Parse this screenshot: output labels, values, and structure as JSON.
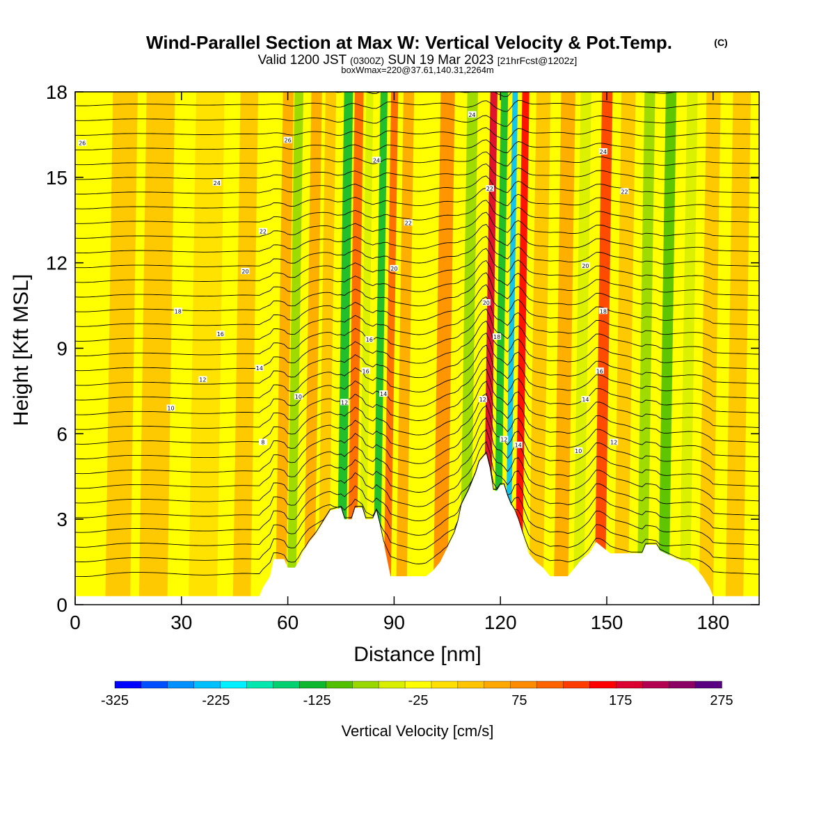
{
  "chart_data": {
    "type": "heatmap",
    "title": "Wind-Parallel Section at Max W: Vertical Velocity & Pot.Temp.",
    "title_mark": "(C)",
    "subtitle": {
      "prefix": "Valid 1200 JST",
      "utc": "(0300Z)",
      "date": "SUN 19 Mar 2023",
      "forecast": "[21hrFcst@1202z]"
    },
    "subtitle2": "boxWmax=220@37.61,140.31,2264m",
    "xlabel": "Distance [nm]",
    "ylabel": "Height [Kft MSL]",
    "xlim": [
      0,
      193
    ],
    "ylim": [
      0,
      18
    ],
    "x_ticks": [
      "0",
      "30",
      "60",
      "90",
      "120",
      "150",
      "180"
    ],
    "x_tick_values": [
      0,
      30,
      60,
      90,
      120,
      150,
      180
    ],
    "y_ticks": [
      "0",
      "3",
      "6",
      "9",
      "12",
      "15",
      "18"
    ],
    "y_tick_values": [
      0,
      3,
      6,
      9,
      12,
      15,
      18
    ],
    "colorbar": {
      "label": "Vertical Velocity [cm/s]",
      "labels": [
        "-325",
        "-225",
        "-125",
        "-25",
        "75",
        "175",
        "275"
      ],
      "label_values": [
        -325,
        -225,
        -125,
        -25,
        75,
        175,
        275
      ],
      "range": [
        -325,
        275
      ],
      "colors": [
        "#0000ff",
        "#0050ff",
        "#0090ff",
        "#00c0ff",
        "#00f0ff",
        "#00e8b0",
        "#00d070",
        "#10b830",
        "#50c000",
        "#98d800",
        "#d8f000",
        "#ffff00",
        "#ffe000",
        "#ffc400",
        "#ffa800",
        "#ff8c00",
        "#ff6400",
        "#ff3c00",
        "#ff0000",
        "#dc0030",
        "#b40050",
        "#8c0064",
        "#5a0082"
      ]
    },
    "terrain_kft": [
      [
        0,
        0.3
      ],
      [
        52,
        0.3
      ],
      [
        53,
        0.6
      ],
      [
        55,
        1.0
      ],
      [
        56,
        1.6
      ],
      [
        59,
        1.6
      ],
      [
        60,
        1.3
      ],
      [
        62,
        1.3
      ],
      [
        63,
        1.5
      ],
      [
        64,
        1.8
      ],
      [
        66,
        2.2
      ],
      [
        68,
        2.5
      ],
      [
        70,
        2.9
      ],
      [
        72,
        3.3
      ],
      [
        75,
        3.4
      ],
      [
        76,
        3.0
      ],
      [
        78,
        3.0
      ],
      [
        79,
        3.4
      ],
      [
        81,
        3.4
      ],
      [
        82,
        3.0
      ],
      [
        84,
        3.0
      ],
      [
        85,
        3.3
      ],
      [
        86,
        2.8
      ],
      [
        87,
        2.2
      ],
      [
        88,
        1.6
      ],
      [
        89,
        1.0
      ],
      [
        99,
        1.0
      ],
      [
        101,
        1.2
      ],
      [
        103,
        1.5
      ],
      [
        105,
        2.0
      ],
      [
        107,
        2.5
      ],
      [
        108,
        2.9
      ],
      [
        109,
        3.5
      ],
      [
        111,
        4.0
      ],
      [
        113,
        4.6
      ],
      [
        114,
        5.0
      ],
      [
        116,
        5.3
      ],
      [
        117,
        4.8
      ],
      [
        118,
        4.0
      ],
      [
        119,
        4.0
      ],
      [
        120,
        4.2
      ],
      [
        121,
        4.2
      ],
      [
        122,
        3.8
      ],
      [
        123,
        3.5
      ],
      [
        124,
        3.3
      ],
      [
        125,
        3.0
      ],
      [
        126,
        2.6
      ],
      [
        127,
        2.2
      ],
      [
        128,
        1.8
      ],
      [
        130,
        1.5
      ],
      [
        132,
        1.3
      ],
      [
        134,
        1.0
      ],
      [
        139,
        1.0
      ],
      [
        141,
        1.3
      ],
      [
        143,
        1.6
      ],
      [
        145,
        1.8
      ],
      [
        147,
        2.2
      ],
      [
        149,
        2.0
      ],
      [
        151,
        1.8
      ],
      [
        160,
        1.8
      ],
      [
        161,
        2.1
      ],
      [
        164,
        2.1
      ],
      [
        165,
        1.9
      ],
      [
        170,
        1.6
      ],
      [
        173,
        1.5
      ],
      [
        175,
        1.3
      ],
      [
        177,
        1.0
      ],
      [
        179,
        0.6
      ],
      [
        180,
        0.3
      ],
      [
        193,
        0.3
      ]
    ],
    "w_bands": [
      {
        "x": 3,
        "w": -35,
        "width": 6
      },
      {
        "x": 12,
        "w": 20,
        "width": 7
      },
      {
        "x": 22,
        "w": 25,
        "width": 8
      },
      {
        "x": 36,
        "w": -10,
        "width": 8
      },
      {
        "x": 47,
        "w": 20,
        "width": 5
      },
      {
        "x": 58,
        "w": 50,
        "width": 3
      },
      {
        "x": 61,
        "w": -70,
        "width": 2.5
      },
      {
        "x": 66,
        "w": 55,
        "width": 3
      },
      {
        "x": 70,
        "w": 30,
        "width": 3
      },
      {
        "x": 75,
        "w": -120,
        "width": 2.5
      },
      {
        "x": 78,
        "w": 110,
        "width": 2.5
      },
      {
        "x": 81,
        "w": -60,
        "width": 2
      },
      {
        "x": 85,
        "w": -140,
        "width": 2
      },
      {
        "x": 88,
        "w": 110,
        "width": 2
      },
      {
        "x": 92,
        "w": 60,
        "width": 3
      },
      {
        "x": 97,
        "w": -20,
        "width": 4
      },
      {
        "x": 103,
        "w": 70,
        "width": 4
      },
      {
        "x": 110,
        "w": -90,
        "width": 3
      },
      {
        "x": 116,
        "w": 185,
        "width": 2
      },
      {
        "x": 119,
        "w": -140,
        "width": 2
      },
      {
        "x": 122,
        "w": -230,
        "width": 1.5
      },
      {
        "x": 125,
        "w": 170,
        "width": 2
      },
      {
        "x": 130,
        "w": 20,
        "width": 4
      },
      {
        "x": 137,
        "w": 60,
        "width": 4
      },
      {
        "x": 142,
        "w": -40,
        "width": 3
      },
      {
        "x": 148,
        "w": 130,
        "width": 3
      },
      {
        "x": 154,
        "w": 40,
        "width": 4
      },
      {
        "x": 160,
        "w": -70,
        "width": 3
      },
      {
        "x": 166,
        "w": -110,
        "width": 3
      },
      {
        "x": 172,
        "w": -40,
        "width": 3
      },
      {
        "x": 178,
        "w": 40,
        "width": 4
      },
      {
        "x": 186,
        "w": 20,
        "width": 5
      }
    ],
    "theta_contours": {
      "interval": 1,
      "labels": [
        {
          "text": "26",
          "x": 2,
          "y": 16.2
        },
        {
          "text": "26",
          "x": 60,
          "y": 16.3
        },
        {
          "text": "24",
          "x": 40,
          "y": 14.8
        },
        {
          "text": "24",
          "x": 85,
          "y": 15.6
        },
        {
          "text": "24",
          "x": 112,
          "y": 17.2
        },
        {
          "text": "24",
          "x": 149,
          "y": 15.9
        },
        {
          "text": "22",
          "x": 53,
          "y": 13.1
        },
        {
          "text": "22",
          "x": 94,
          "y": 13.4
        },
        {
          "text": "22",
          "x": 117,
          "y": 14.6
        },
        {
          "text": "22",
          "x": 155,
          "y": 14.5
        },
        {
          "text": "20",
          "x": 48,
          "y": 11.7
        },
        {
          "text": "20",
          "x": 90,
          "y": 11.8
        },
        {
          "text": "20",
          "x": 116,
          "y": 10.6
        },
        {
          "text": "20",
          "x": 144,
          "y": 11.9
        },
        {
          "text": "18",
          "x": 29,
          "y": 10.3
        },
        {
          "text": "18",
          "x": 119,
          "y": 9.4
        },
        {
          "text": "18",
          "x": 149,
          "y": 10.3
        },
        {
          "text": "16",
          "x": 41,
          "y": 9.5
        },
        {
          "text": "16",
          "x": 83,
          "y": 9.3
        },
        {
          "text": "16",
          "x": 82,
          "y": 8.2
        },
        {
          "text": "16",
          "x": 148,
          "y": 8.2
        },
        {
          "text": "14",
          "x": 52,
          "y": 8.3
        },
        {
          "text": "14",
          "x": 87,
          "y": 7.4
        },
        {
          "text": "14",
          "x": 144,
          "y": 7.2
        },
        {
          "text": "14",
          "x": 125,
          "y": 5.6
        },
        {
          "text": "12",
          "x": 36,
          "y": 7.9
        },
        {
          "text": "12",
          "x": 76,
          "y": 7.1
        },
        {
          "text": "12",
          "x": 115,
          "y": 7.2
        },
        {
          "text": "12",
          "x": 121,
          "y": 5.8
        },
        {
          "text": "12",
          "x": 152,
          "y": 5.7
        },
        {
          "text": "10",
          "x": 27,
          "y": 6.9
        },
        {
          "text": "10",
          "x": 63,
          "y": 7.3
        },
        {
          "text": "10",
          "x": 142,
          "y": 5.4
        },
        {
          "text": "8",
          "x": 53,
          "y": 5.7
        }
      ]
    }
  }
}
